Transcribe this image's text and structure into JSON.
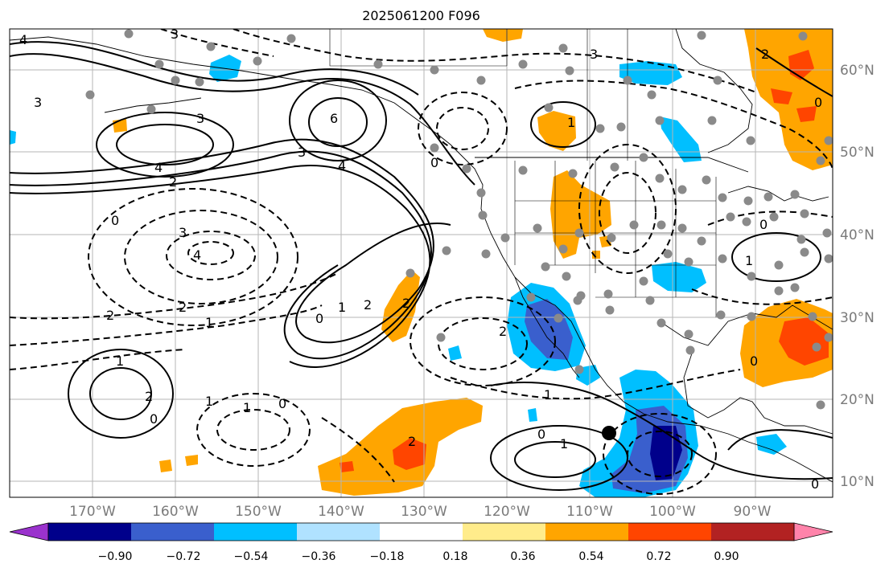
{
  "title": "2025061200 F096",
  "map": {
    "lon_ticks": [
      "170°W",
      "160°W",
      "150°W",
      "140°W",
      "130°W",
      "120°W",
      "110°W",
      "100°W",
      "90°W"
    ],
    "lat_ticks": [
      "60°N",
      "50°N",
      "40°N",
      "30°N",
      "20°N",
      "10°N"
    ],
    "contour_labels": [
      "4",
      "3",
      "3",
      "3",
      "6",
      "3",
      "4",
      "4",
      "2",
      "0",
      "3",
      "4",
      "2",
      "2",
      "1",
      "1",
      "2",
      "0",
      "2",
      "2",
      "0",
      "1",
      "1",
      "2",
      "0",
      "1",
      "0",
      "1",
      "0",
      "1",
      "1",
      "3",
      "2",
      "0",
      "0",
      "1",
      "0",
      "0",
      "2"
    ],
    "marker": "storm-center"
  },
  "colorbar": {
    "colors": [
      "#9a32cd",
      "#00008b",
      "#3a5fcd",
      "#00bfff",
      "#b0e2ff",
      "#ffffff",
      "#ffec8b",
      "#ffa500",
      "#ff4500",
      "#b22222",
      "#ff83aa"
    ],
    "labels": [
      "−0.90",
      "−0.72",
      "−0.54",
      "−0.36",
      "−0.18",
      "0.18",
      "0.36",
      "0.54",
      "0.72",
      "0.90"
    ]
  }
}
